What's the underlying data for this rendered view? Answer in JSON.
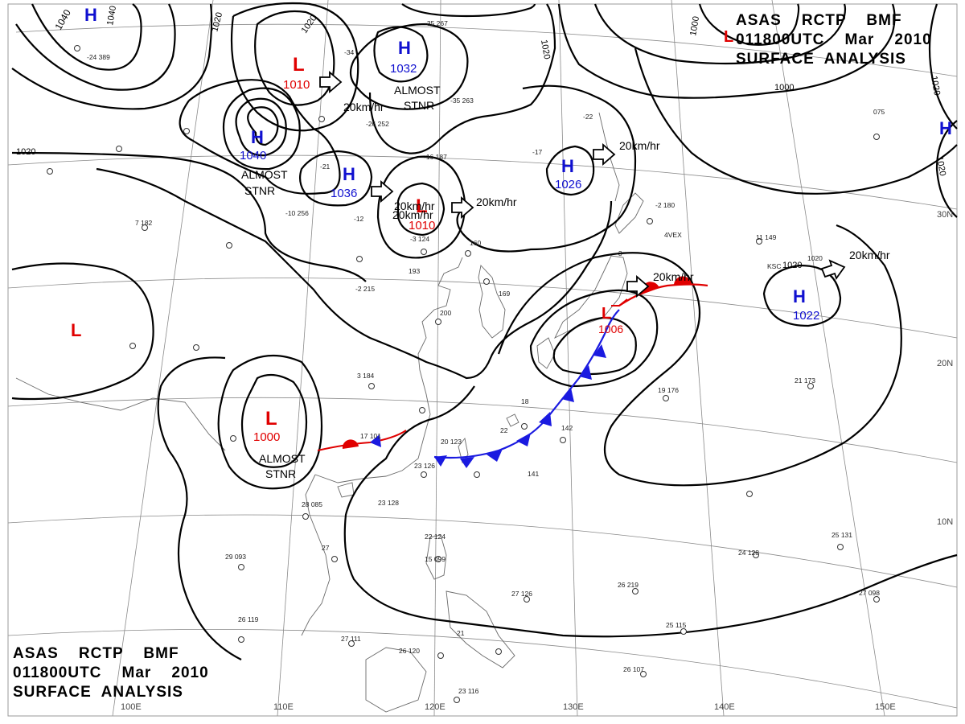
{
  "header_top": {
    "line1": "ASAS    RCTP    BMF",
    "line2": "011800UTC    Mar    2010",
    "line3": "SURFACE  ANALYSIS"
  },
  "header_bottom": {
    "line1": "ASAS    RCTP    BMF",
    "line2": "011800UTC    Mar    2010",
    "line3": "SURFACE  ANALYSIS"
  },
  "colors": {
    "high": "#1010d0",
    "low": "#e00000",
    "isobar": "#000000",
    "grid": "#777777",
    "coast": "#666666",
    "cold_front": "#1a1ae0",
    "warm_front": "#e00000"
  },
  "longitude_labels": [
    "100E",
    "110E",
    "120E",
    "130E",
    "140E",
    "150E"
  ],
  "latitude_labels": [
    "30N",
    "20N",
    "10N"
  ],
  "pressure_centers": [
    {
      "type": "H",
      "value": "1040"
    },
    {
      "type": "L",
      "value": "1010"
    },
    {
      "type": "H",
      "value": "1032"
    },
    {
      "type": "H",
      "value": "1040"
    },
    {
      "type": "H",
      "value": "1036"
    },
    {
      "type": "L",
      "value": "1010"
    },
    {
      "type": "H",
      "value": "1026"
    },
    {
      "type": "L",
      "value": ""
    },
    {
      "type": "H",
      "value": ""
    },
    {
      "type": "H",
      "value": "1022"
    },
    {
      "type": "L",
      "value": ""
    },
    {
      "type": "L",
      "value": "1000"
    },
    {
      "type": "L",
      "value": "1006"
    }
  ],
  "isobar_labels": [
    "1040",
    "1020",
    "1020",
    "1020",
    "1020",
    "1000",
    "1020",
    "1000",
    "1020",
    "1020"
  ],
  "movement_labels": [
    "20km/hr",
    "20km/hr",
    "20km/hr",
    "20km/hr",
    "20km/hr",
    "20km/hr",
    "20km/hr"
  ],
  "stationary_notes": [
    {
      "line1": "ALMOST",
      "line2": "STNR"
    },
    {
      "line1": "ALMOST",
      "line2": "STNR"
    },
    {
      "line1": "ALMOST",
      "line2": "STNR"
    }
  ],
  "station_plots": [
    "-24  389",
    "-34",
    "-26  252",
    "-35  263",
    "-35  267",
    "-21",
    "-10  256",
    "-12",
    "-16  187",
    "-17",
    "-22",
    "-2  180",
    "11  149",
    "7  182",
    "-3  124",
    "160",
    "-2  215",
    "193",
    "169",
    "200",
    "3  184",
    "18",
    "17  101",
    "20  123",
    "22",
    "142",
    "141",
    "23  126",
    "23  128",
    "28  085",
    "27",
    "29  093",
    "26  119",
    "27  111",
    "26  120",
    "23  116",
    "21",
    "15  099",
    "22  124",
    "27  126",
    "26  219",
    "25  115",
    "26  107",
    "24  128",
    "25  131",
    "27  098",
    "19  176",
    "21  173",
    "075",
    "KSC",
    "1020",
    "-3",
    "4VEX"
  ]
}
